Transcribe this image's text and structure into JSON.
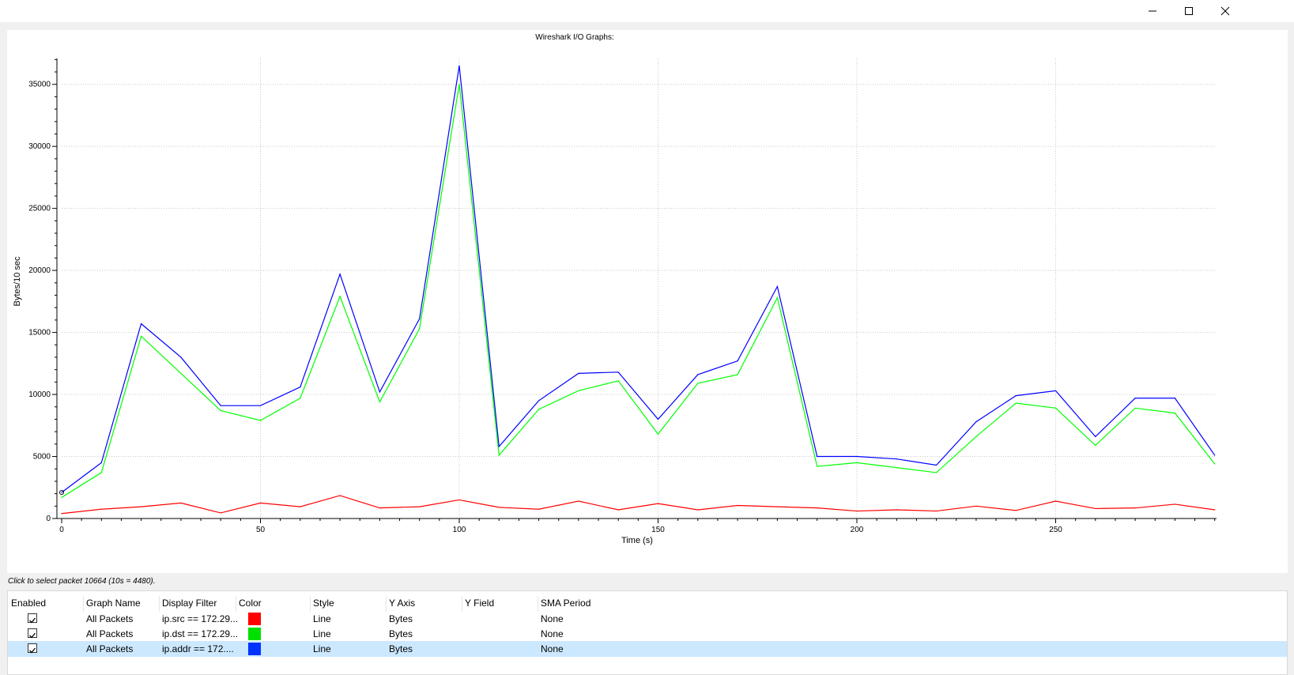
{
  "titlebar": {
    "minimize_glyph": "—",
    "maximize_glyph": "☐",
    "close_glyph": "✕"
  },
  "chart_title": "Wireshark I/O Graphs:",
  "status_text": "Click to select packet 10664 (10s = 4480).",
  "chart_data": {
    "type": "line",
    "title": "Wireshark I/O Graphs:",
    "xlabel": "Time (s)",
    "ylabel": "Bytes/10 sec",
    "xlim": [
      0,
      290
    ],
    "ylim": [
      0,
      37000
    ],
    "xticks": [
      0,
      50,
      100,
      150,
      200,
      250
    ],
    "yticks": [
      0,
      5000,
      10000,
      15000,
      20000,
      25000,
      30000,
      35000
    ],
    "grid": true,
    "x": [
      0,
      10,
      20,
      30,
      40,
      50,
      60,
      70,
      80,
      90,
      100,
      110,
      120,
      130,
      140,
      150,
      160,
      170,
      180,
      190,
      200,
      210,
      220,
      230,
      240,
      250,
      260,
      270,
      280,
      290
    ],
    "series": [
      {
        "color": "#ff0000",
        "values": [
          400,
          750,
          950,
          1250,
          450,
          1250,
          950,
          1850,
          850,
          950,
          1500,
          900,
          750,
          1400,
          700,
          1200,
          700,
          1050,
          950,
          850,
          600,
          700,
          600,
          1000,
          650,
          1400,
          800,
          850,
          1150,
          700
        ]
      },
      {
        "color": "#00ff00",
        "values": [
          1700,
          3700,
          14700,
          11700,
          8700,
          7900,
          9700,
          17900,
          9400,
          15300,
          35000,
          5100,
          8800,
          10300,
          11100,
          6800,
          10900,
          11600,
          17800,
          4200,
          4500,
          4100,
          3700,
          6600,
          9300,
          8900,
          5900,
          8900,
          8500,
          4400
        ]
      },
      {
        "color": "#0000ff",
        "values": [
          2100,
          4500,
          15700,
          13000,
          9100,
          9100,
          10600,
          19700,
          10200,
          16100,
          36500,
          5800,
          9500,
          11700,
          11800,
          8000,
          11600,
          12700,
          18700,
          5000,
          5000,
          4800,
          4300,
          7800,
          9900,
          10300,
          6600,
          9700,
          9700,
          5100
        ]
      }
    ],
    "cursor": {
      "x": 0,
      "y": 2100
    }
  },
  "table": {
    "headers": [
      "Enabled",
      "Graph Name",
      "Display Filter",
      "Color",
      "Style",
      "Y Axis",
      "Y Field",
      "SMA Period"
    ],
    "rows": [
      {
        "enabled": true,
        "name": "All Packets",
        "filter": "ip.src == 172.29...",
        "color": "#ff0000",
        "style": "Line",
        "y_axis": "Bytes",
        "y_field": "",
        "sma": "None",
        "selected": false
      },
      {
        "enabled": true,
        "name": "All Packets",
        "filter": "ip.dst == 172.29...",
        "color": "#00e000",
        "style": "Line",
        "y_axis": "Bytes",
        "y_field": "",
        "sma": "None",
        "selected": false
      },
      {
        "enabled": true,
        "name": "All Packets",
        "filter": "ip.addr == 172....",
        "color": "#0033ff",
        "style": "Line",
        "y_axis": "Bytes",
        "y_field": "",
        "sma": "None",
        "selected": true
      }
    ]
  }
}
